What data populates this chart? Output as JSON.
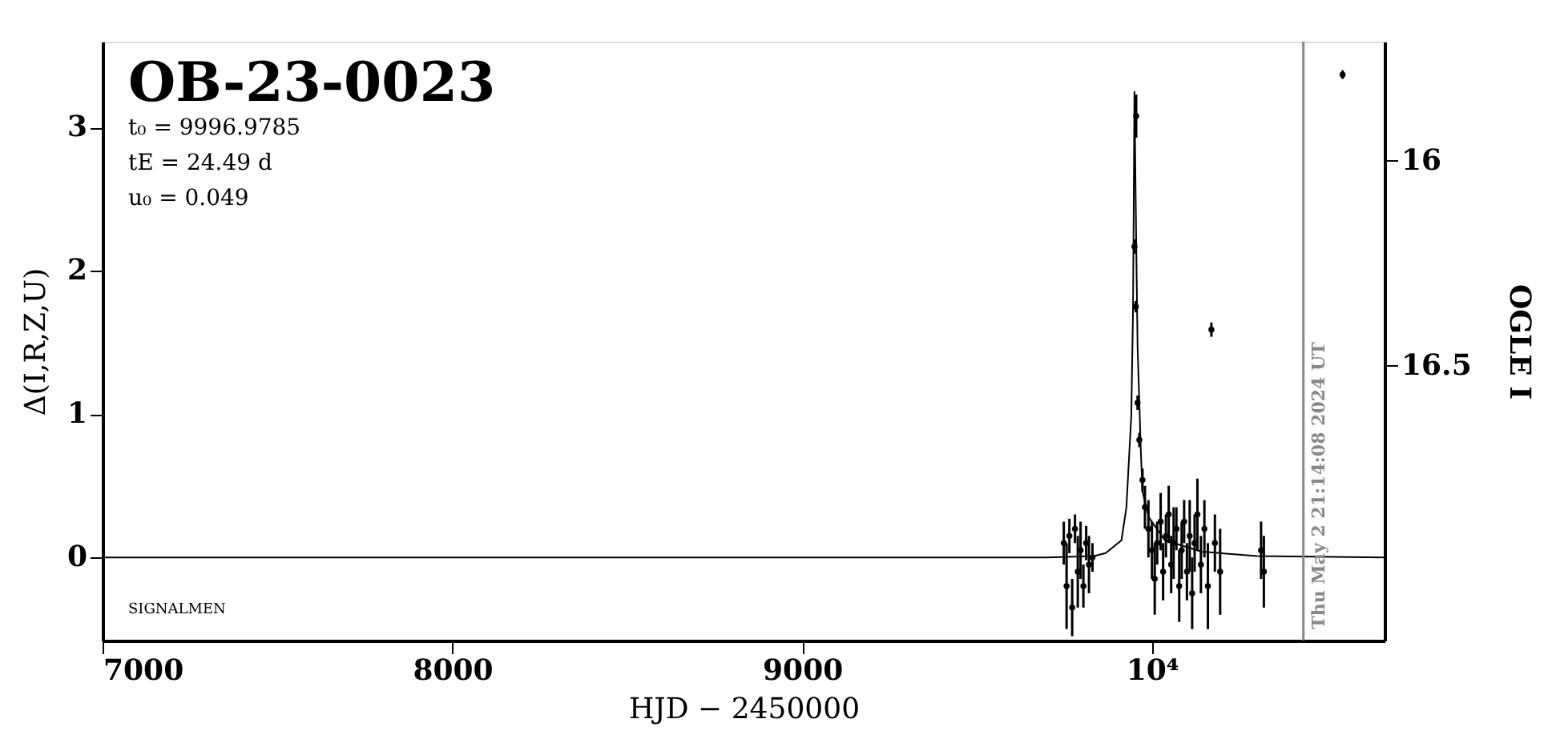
{
  "chart_data": {
    "type": "scatter",
    "title": "OB-23-0023",
    "xlabel": "HJD − 2450000",
    "ylabel": "Δ(I,R,Z,U)",
    "y2label": "OGLE I",
    "annotations": [
      "t₀ = 9996.9785",
      "tE = 24.49 d",
      "u₀ = 0.049",
      {
        "text": "Thu May  2 21:14:08 2024 UT",
        "x": 10433,
        "y": -0.5
      },
      "SIGNALMEN"
    ],
    "xlim": [
      7000,
      10665
    ],
    "xticks": [
      7000,
      8000,
      9000,
      {
        "value": 10000,
        "label": "10⁴"
      }
    ],
    "ylim": [
      -0.58,
      3.6
    ],
    "yticks": [
      0,
      1,
      2,
      3
    ],
    "y2lim": [
      17.17,
      15.71
    ],
    "y2ticks": [
      16,
      16.5
    ],
    "marker": "circle",
    "grid": false,
    "ref_lines": [
      {
        "axis": "x",
        "value": 10433,
        "color": "#888888"
      }
    ],
    "series": [
      {
        "type": "line",
        "marker": "none",
        "color": "#000000",
        "x": [
          7000,
          9700,
          9835,
          9868,
          9913,
          9927,
          9941,
          9946,
          9950,
          9955,
          9959,
          9968,
          9973,
          9991,
          10037,
          10142,
          10300,
          10665
        ],
        "values": [
          0,
          0,
          0.01,
          0.03,
          0.12,
          0.35,
          0.99,
          1.74,
          3.25,
          2.2,
          1.47,
          0.76,
          0.46,
          0.28,
          0.12,
          0.04,
          0.01,
          0
        ]
      },
      {
        "color": "#000000",
        "x": [
          9748,
          9756,
          9764,
          9772,
          9780,
          9788,
          9796,
          9804,
          9812,
          9820,
          9830,
          9950,
          9954,
          9955,
          9959,
          9964,
          9973,
          9980,
          9990,
          10000,
          10008,
          10015,
          10025,
          10032,
          10040,
          10048,
          10055,
          10062,
          10070,
          10078,
          10085,
          10092,
          10100,
          10108,
          10115,
          10122,
          10130,
          10140,
          10150,
          10160,
          10170,
          10180,
          10195,
          10312,
          10320,
          10545
        ],
        "values": [
          0.1,
          -0.2,
          0.15,
          -0.35,
          0.2,
          -0.1,
          0.05,
          -0.2,
          0.1,
          -0.05,
          0.0,
          2.17,
          1.75,
          3.08,
          1.08,
          0.82,
          0.54,
          0.35,
          0.2,
          0.05,
          -0.15,
          0.1,
          0.25,
          -0.1,
          0.15,
          0.3,
          -0.05,
          0.1,
          0.2,
          -0.2,
          0.05,
          0.25,
          -0.1,
          0.15,
          -0.25,
          0.1,
          0.3,
          -0.05,
          0.2,
          -0.2,
          1.59,
          0.1,
          -0.1,
          0.05,
          -0.1,
          3.37
        ],
        "errors": [
          0.15,
          0.3,
          0.12,
          0.2,
          0.1,
          0.25,
          0.2,
          0.15,
          0.12,
          0.2,
          0.1,
          0.05,
          0.04,
          0.15,
          0.05,
          0.05,
          0.08,
          0.15,
          0.2,
          0.2,
          0.25,
          0.15,
          0.2,
          0.2,
          0.15,
          0.2,
          0.2,
          0.25,
          0.15,
          0.25,
          0.2,
          0.15,
          0.2,
          0.25,
          0.25,
          0.2,
          0.25,
          0.2,
          0.2,
          0.3,
          0.05,
          0.2,
          0.3,
          0.2,
          0.25,
          0.03
        ]
      }
    ]
  }
}
